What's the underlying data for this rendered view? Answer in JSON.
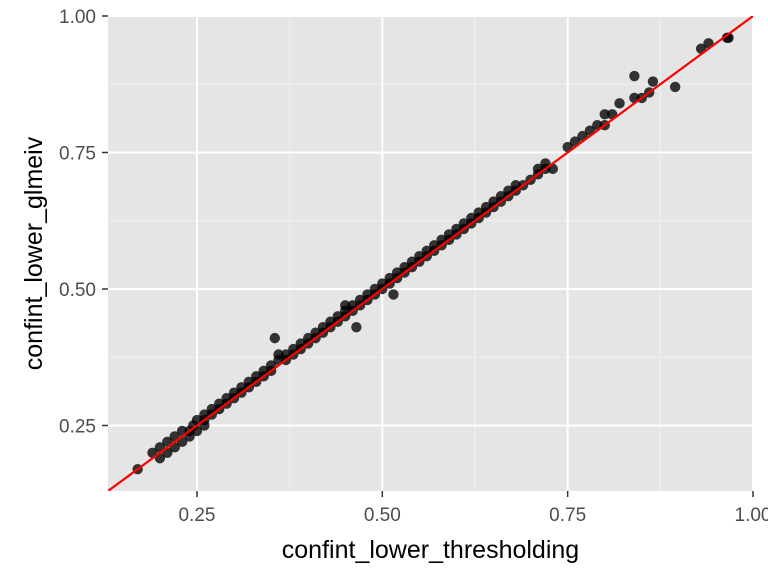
{
  "chart_data": {
    "type": "scatter",
    "title": "",
    "xlabel": "confint_lower_thresholding",
    "ylabel": "confint_lower_glmeiv",
    "xlim": [
      0.13,
      1.0
    ],
    "ylim": [
      0.13,
      1.0
    ],
    "x_ticks": [
      "0.25",
      "0.50",
      "0.75",
      "1.00"
    ],
    "y_ticks": [
      "0.25",
      "0.50",
      "0.75",
      "1.00"
    ],
    "x_tick_values": [
      0.25,
      0.5,
      0.75,
      1.0
    ],
    "y_tick_values": [
      0.25,
      0.5,
      0.75,
      1.0
    ],
    "grid": true,
    "colors": {
      "panel": "#e5e5e5",
      "grid_major": "#ffffff",
      "grid_minor": "#f2f2f2",
      "points": "#000000",
      "reference_line": "#ff0000"
    },
    "reference_line": {
      "type": "identity",
      "slope": 1,
      "intercept": 0
    },
    "x": [
      0.17,
      0.19,
      0.2,
      0.2,
      0.21,
      0.21,
      0.22,
      0.22,
      0.23,
      0.23,
      0.24,
      0.24,
      0.25,
      0.25,
      0.26,
      0.26,
      0.26,
      0.27,
      0.27,
      0.28,
      0.28,
      0.29,
      0.29,
      0.3,
      0.3,
      0.31,
      0.31,
      0.32,
      0.32,
      0.33,
      0.33,
      0.34,
      0.34,
      0.35,
      0.35,
      0.36,
      0.36,
      0.37,
      0.37,
      0.38,
      0.38,
      0.39,
      0.39,
      0.4,
      0.4,
      0.41,
      0.41,
      0.42,
      0.42,
      0.43,
      0.43,
      0.44,
      0.44,
      0.45,
      0.45,
      0.46,
      0.46,
      0.47,
      0.47,
      0.48,
      0.48,
      0.49,
      0.49,
      0.5,
      0.5,
      0.51,
      0.51,
      0.52,
      0.52,
      0.53,
      0.53,
      0.54,
      0.54,
      0.55,
      0.55,
      0.56,
      0.56,
      0.57,
      0.57,
      0.58,
      0.58,
      0.59,
      0.59,
      0.6,
      0.6,
      0.61,
      0.61,
      0.62,
      0.62,
      0.63,
      0.63,
      0.64,
      0.64,
      0.65,
      0.65,
      0.66,
      0.66,
      0.67,
      0.67,
      0.68,
      0.68,
      0.69,
      0.7,
      0.71,
      0.71,
      0.72,
      0.72,
      0.73,
      0.75,
      0.76,
      0.77,
      0.78,
      0.79,
      0.8,
      0.81,
      0.82,
      0.84,
      0.85,
      0.86,
      0.93,
      0.94,
      0.965,
      0.967,
      0.355,
      0.45,
      0.465,
      0.515,
      0.895,
      0.245,
      0.8,
      0.84,
      0.865
    ],
    "y": [
      0.17,
      0.2,
      0.21,
      0.19,
      0.22,
      0.2,
      0.23,
      0.21,
      0.24,
      0.22,
      0.24,
      0.23,
      0.26,
      0.24,
      0.27,
      0.25,
      0.26,
      0.28,
      0.27,
      0.28,
      0.29,
      0.3,
      0.29,
      0.31,
      0.3,
      0.32,
      0.31,
      0.33,
      0.32,
      0.34,
      0.33,
      0.35,
      0.34,
      0.36,
      0.35,
      0.37,
      0.38,
      0.38,
      0.37,
      0.39,
      0.38,
      0.4,
      0.39,
      0.41,
      0.4,
      0.42,
      0.41,
      0.43,
      0.42,
      0.44,
      0.43,
      0.45,
      0.44,
      0.46,
      0.45,
      0.47,
      0.46,
      0.48,
      0.47,
      0.49,
      0.48,
      0.5,
      0.49,
      0.51,
      0.5,
      0.52,
      0.51,
      0.53,
      0.52,
      0.54,
      0.53,
      0.55,
      0.54,
      0.56,
      0.55,
      0.57,
      0.56,
      0.58,
      0.57,
      0.59,
      0.58,
      0.6,
      0.59,
      0.61,
      0.6,
      0.62,
      0.61,
      0.63,
      0.62,
      0.64,
      0.63,
      0.65,
      0.64,
      0.66,
      0.65,
      0.67,
      0.66,
      0.68,
      0.67,
      0.69,
      0.68,
      0.69,
      0.7,
      0.72,
      0.71,
      0.73,
      0.72,
      0.72,
      0.76,
      0.77,
      0.78,
      0.79,
      0.8,
      0.82,
      0.82,
      0.84,
      0.85,
      0.85,
      0.86,
      0.94,
      0.95,
      0.96,
      0.96,
      0.41,
      0.47,
      0.43,
      0.49,
      0.87,
      0.25,
      0.8,
      0.89,
      0.88
    ]
  }
}
